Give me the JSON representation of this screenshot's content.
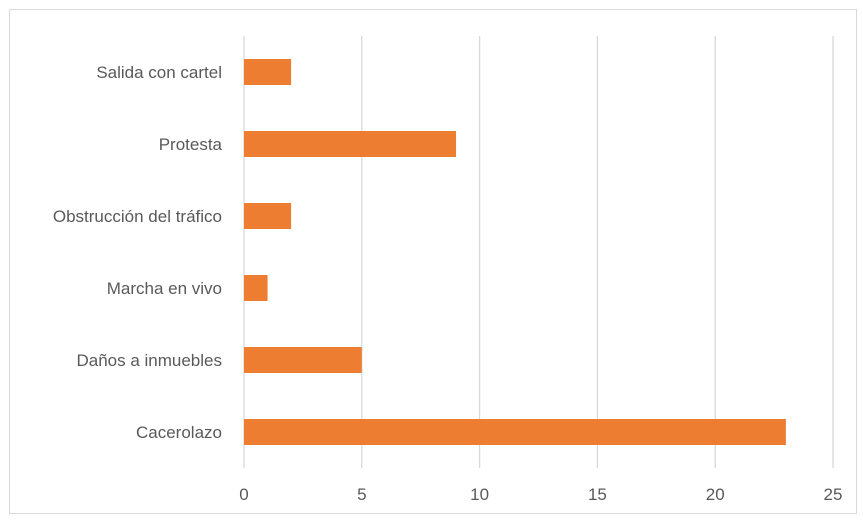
{
  "chart_data": {
    "type": "bar",
    "orientation": "horizontal",
    "categories": [
      "Cacerolazo",
      "Daños a inmuebles",
      "Marcha en vivo",
      "Obstrucción del tráfico",
      "Protesta",
      "Salida con cartel"
    ],
    "values": [
      23,
      5,
      1,
      2,
      9,
      2
    ],
    "xlim": [
      0,
      25
    ],
    "xticks": [
      "0",
      "5",
      "10",
      "15",
      "20",
      "25"
    ],
    "title": "",
    "xlabel": "",
    "ylabel": "",
    "grid": "vertical",
    "legend": "none",
    "bar_color": "#ed7d31",
    "gridline_color": "#d9d9d9",
    "text_color": "#595959"
  }
}
